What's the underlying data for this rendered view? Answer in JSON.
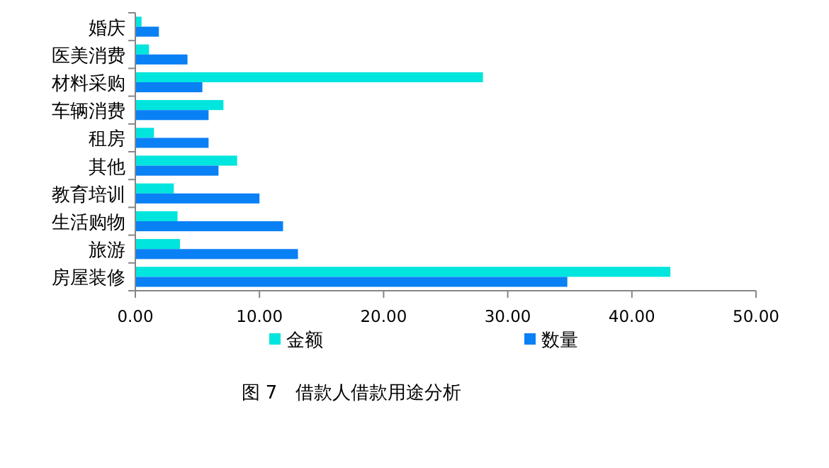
{
  "chart_data": {
    "type": "bar",
    "orientation": "horizontal",
    "title": "图 7　借款人借款用途分析",
    "categories": [
      "婚庆",
      "医美消费",
      "材料采购",
      "车辆消费",
      "租房",
      "其他",
      "教育培训",
      "生活购物",
      "旅游",
      "房屋装修"
    ],
    "series": [
      {
        "name": "金额",
        "color": "#00e5dd",
        "values": [
          0.5,
          1.1,
          28.0,
          7.1,
          1.5,
          8.2,
          3.1,
          3.4,
          3.6,
          43.1
        ]
      },
      {
        "name": "数量",
        "color": "#0a80f5",
        "values": [
          1.9,
          4.2,
          5.4,
          5.9,
          5.9,
          6.7,
          10.0,
          11.9,
          13.1,
          34.8
        ]
      }
    ],
    "xlim": [
      0,
      50
    ],
    "xticks": [
      {
        "value": 0,
        "label": "0.00"
      },
      {
        "value": 10,
        "label": "10.00"
      },
      {
        "value": 20,
        "label": "20.00"
      },
      {
        "value": 30,
        "label": "30.00"
      },
      {
        "value": 40,
        "label": "40.00"
      },
      {
        "value": 50,
        "label": "50.00"
      }
    ],
    "legend": "bottom",
    "grid": false
  }
}
